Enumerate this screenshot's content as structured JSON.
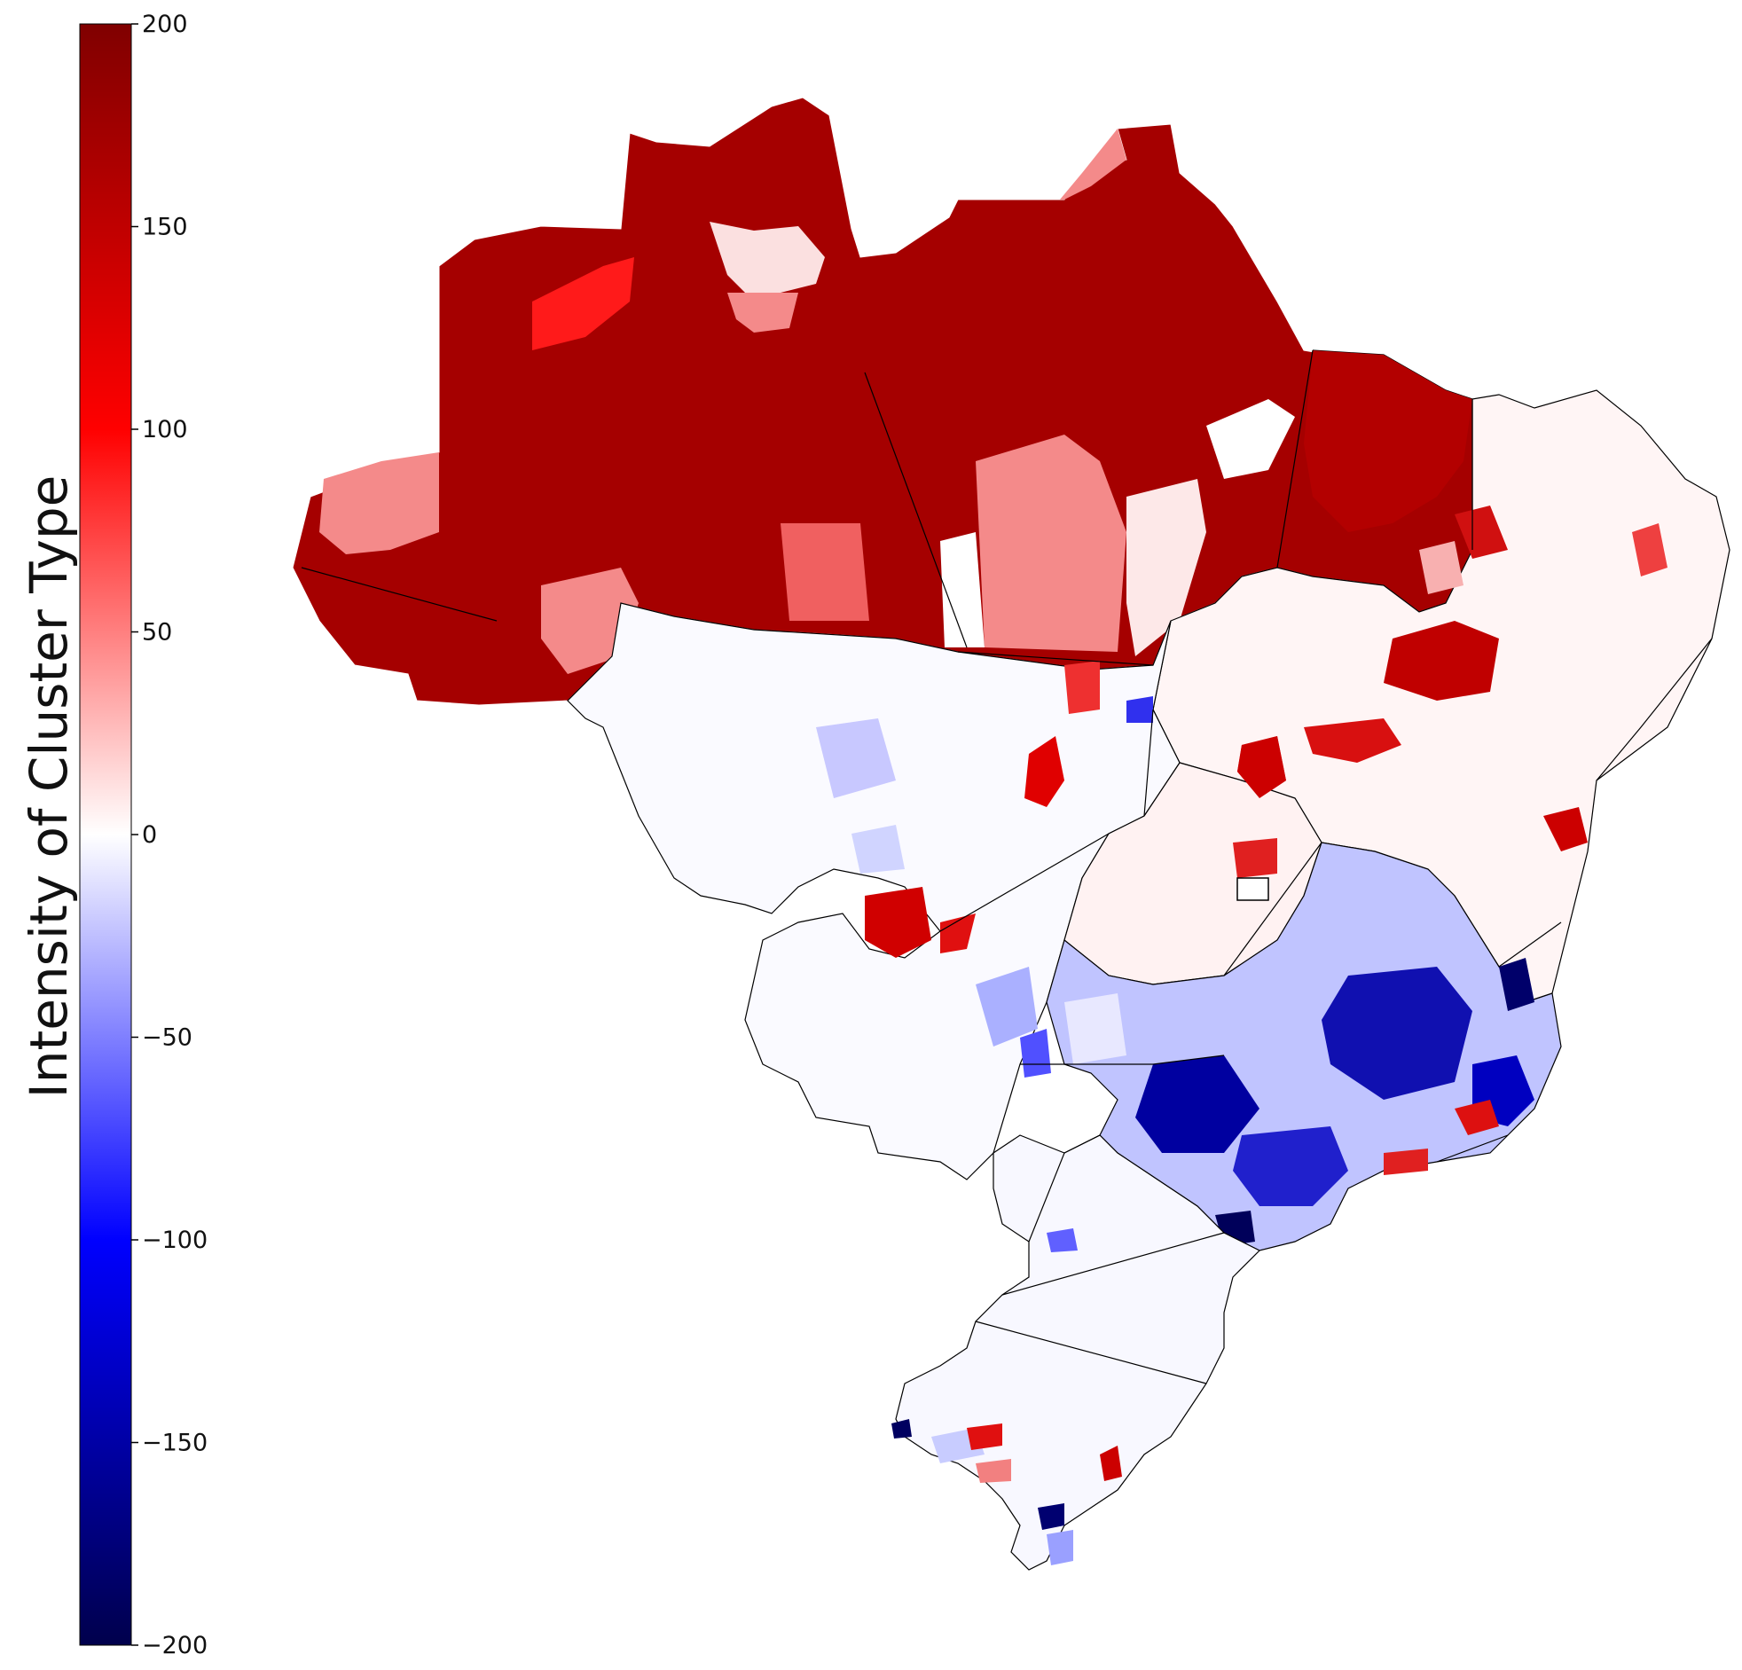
{
  "colorbar": {
    "label": "Intensity of Cluster Type",
    "ticks": [
      200,
      150,
      100,
      50,
      0,
      -50,
      -100,
      -150,
      -200
    ],
    "tick_labels": [
      "200",
      "150",
      "100",
      "50",
      "0",
      "−50",
      "−100",
      "−150",
      "−200"
    ],
    "range": [
      -200,
      200
    ],
    "colormap": "seismic",
    "colors": {
      "max": "#800000",
      "high": "#ff0000",
      "mid": "#ffffff",
      "low": "#0000ff",
      "min": "#000050"
    }
  },
  "map": {
    "region": "Brazil",
    "border_color": "#000000"
  }
}
